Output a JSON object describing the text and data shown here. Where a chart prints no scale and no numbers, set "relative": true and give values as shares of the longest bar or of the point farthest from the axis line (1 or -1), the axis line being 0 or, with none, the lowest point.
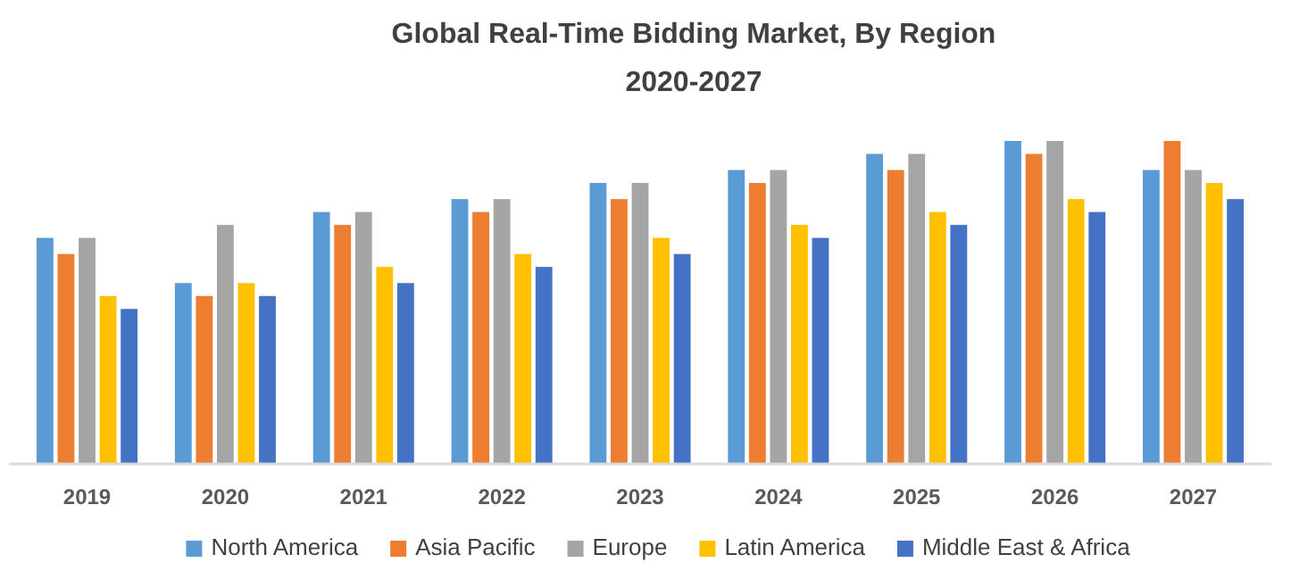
{
  "chart_data": {
    "type": "bar",
    "title": "Global Real-Time Bidding Market, By Region",
    "subtitle": "2020-2027",
    "categories": [
      "2019",
      "2020",
      "2021",
      "2022",
      "2023",
      "2024",
      "2025",
      "2026",
      "2027"
    ],
    "relative": true,
    "legend": "bottom",
    "series": [
      {
        "name": "North America",
        "color": "#5b9bd5",
        "values": [
          0.7,
          0.56,
          0.78,
          0.82,
          0.87,
          0.91,
          0.96,
          1,
          0.91
        ]
      },
      {
        "name": "Asia Pacific",
        "color": "#ed7d31",
        "values": [
          0.65,
          0.52,
          0.74,
          0.78,
          0.82,
          0.87,
          0.91,
          0.96,
          1
        ]
      },
      {
        "name": "Europe",
        "color": "#a5a5a5",
        "values": [
          0.7,
          0.74,
          0.78,
          0.82,
          0.87,
          0.91,
          0.96,
          1,
          0.91
        ]
      },
      {
        "name": "Latin America",
        "color": "#ffc000",
        "values": [
          0.52,
          0.56,
          0.61,
          0.65,
          0.7,
          0.74,
          0.78,
          0.82,
          0.87
        ]
      },
      {
        "name": "Middle East & Africa",
        "color": "#4472c4",
        "values": [
          0.48,
          0.52,
          0.56,
          0.61,
          0.65,
          0.7,
          0.74,
          0.78,
          0.82
        ]
      }
    ]
  }
}
